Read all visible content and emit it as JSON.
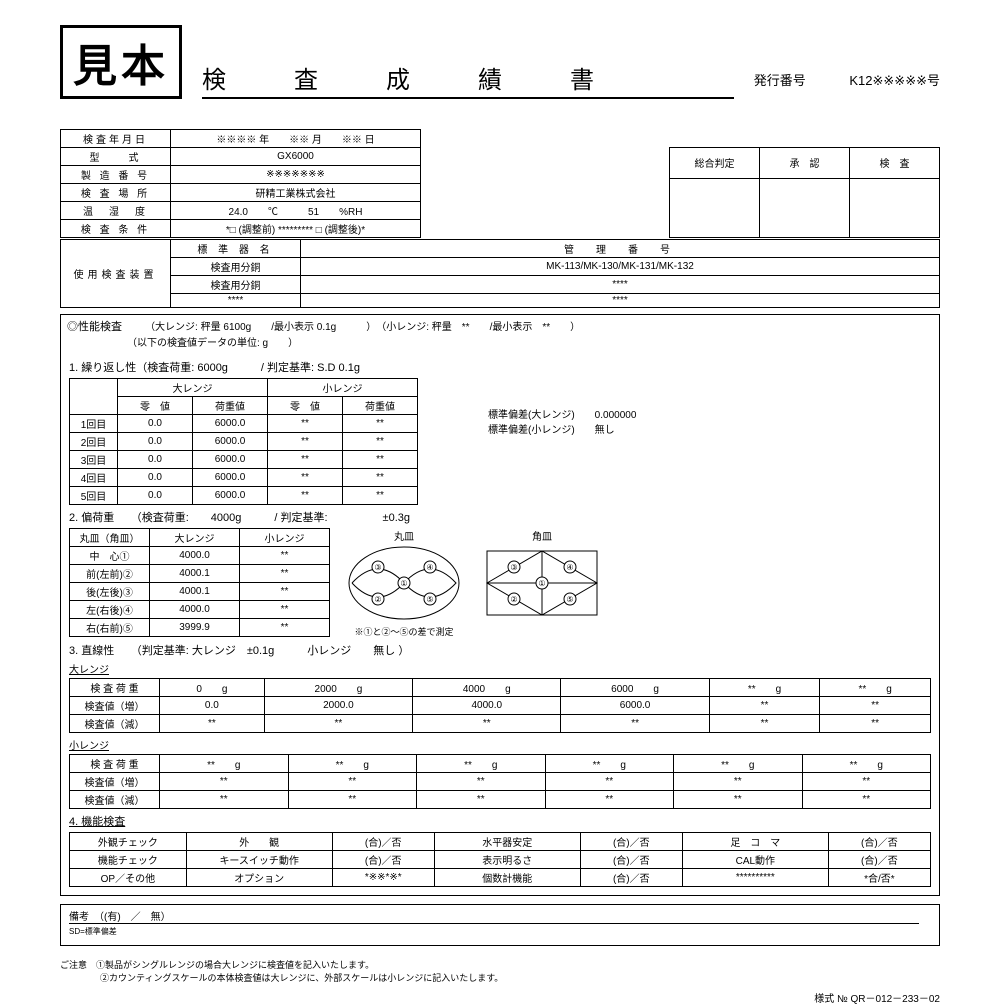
{
  "header": {
    "sample_stamp": "見本",
    "title": "検　査　成　績　書",
    "issue_label": "発行番号",
    "issue_value": "K12※※※※※号"
  },
  "info": {
    "rows": [
      {
        "label": "検査年月日",
        "value": "※※※※ 年　　※※ 月　　※※  日"
      },
      {
        "label": "型　　式",
        "value": "GX6000"
      },
      {
        "label": "製 造 番 号",
        "value": "※※※※※※※"
      },
      {
        "label": "検 査 場 所",
        "value": "研精工業株式会社"
      },
      {
        "label": "温　湿　度",
        "value": "24.0　　℃　　　51　　%RH"
      },
      {
        "label": "検 査 条 件",
        "value": "*□ (調整前) ********* □ (調整後)*"
      }
    ]
  },
  "judge": {
    "cols": [
      "総合判定",
      "承　認",
      "検　査"
    ]
  },
  "device": {
    "side_label": "使用検査装置",
    "header": [
      "標 準 器 名",
      "管　理　番　号"
    ],
    "rows": [
      [
        "検査用分銅",
        "MK-113/MK-130/MK-131/MK-132"
      ],
      [
        "検査用分銅",
        "****"
      ],
      [
        "****",
        "****"
      ]
    ]
  },
  "perf": {
    "title": "◎性能検査",
    "spec": "（大レンジ: 秤量  6100g　　/最小表示  0.1g　　　）　（小レンジ: 秤量　**　　/最小表示　**　　）",
    "unit_note": "（以下の検査値データの単位:  g　　）"
  },
  "repeat": {
    "title": "1. 繰り返し性（検査荷重: 6000g　　　/  判定基準: S.D 0.1g",
    "head_top": [
      "大レンジ",
      "小レンジ"
    ],
    "head_sub": [
      "零　値",
      "荷重値",
      "零　値",
      "荷重値"
    ],
    "rows": [
      [
        "1回目",
        "0.0",
        "6000.0",
        "**",
        "**"
      ],
      [
        "2回目",
        "0.0",
        "6000.0",
        "**",
        "**"
      ],
      [
        "3回目",
        "0.0",
        "6000.0",
        "**",
        "**"
      ],
      [
        "4回目",
        "0.0",
        "6000.0",
        "**",
        "**"
      ],
      [
        "5回目",
        "0.0",
        "6000.0",
        "**",
        "**"
      ]
    ],
    "sd_large_label": "標準偏差(大レンジ)",
    "sd_large_value": "0.000000",
    "sd_small_label": "標準偏差(小レンジ)",
    "sd_small_value": "無し"
  },
  "corner": {
    "title": "2. 偏荷重　　（検査荷重:　　4000g　　　/  判定基準:　　　　　±0.3g",
    "head": [
      "丸皿（角皿）",
      "大レンジ",
      "小レンジ"
    ],
    "rows": [
      [
        "中　心①",
        "4000.0",
        "**"
      ],
      [
        "前(左前)②",
        "4000.1",
        "**"
      ],
      [
        "後(左後)③",
        "4000.1",
        "**"
      ],
      [
        "左(右後)④",
        "4000.0",
        "**"
      ],
      [
        "右(右前)⑤",
        "3999.9",
        "**"
      ]
    ],
    "round_label": "丸皿",
    "square_label": "角皿",
    "note": "※①と②～⑤の差で測定"
  },
  "linear": {
    "title": "3. 直線性　　（判定基準: 大レンジ　±0.1g　　　小レンジ　　無し  ）",
    "large_label": "大レンジ",
    "small_label": "小レンジ",
    "row_labels": [
      "検 査 荷 重",
      "検査値（増）",
      "検査値（減）"
    ],
    "large_cols": [
      "0　　g",
      "2000　　g",
      "4000　　g",
      "6000　　g",
      "**　　g",
      "**　　g"
    ],
    "large_inc": [
      "0.0",
      "2000.0",
      "4000.0",
      "6000.0",
      "**",
      "**"
    ],
    "large_dec": [
      "**",
      "**",
      "**",
      "**",
      "**",
      "**"
    ],
    "small_cols": [
      "**　　g",
      "**　　g",
      "**　　g",
      "**　　g",
      "**　　g",
      "**　　g"
    ],
    "small_inc": [
      "**",
      "**",
      "**",
      "**",
      "**",
      "**"
    ],
    "small_dec": [
      "**",
      "**",
      "**",
      "**",
      "**",
      "**"
    ]
  },
  "func": {
    "title": "4. 機能検査",
    "rows": [
      [
        "外観チェック",
        "外　　観",
        "(合)／否",
        "水平器安定",
        "(合)／否",
        "足　コ　マ",
        "(合)／否"
      ],
      [
        "機能チェック",
        "キースイッチ動作",
        "(合)／否",
        "表示明るさ",
        "(合)／否",
        "CAL動作",
        "(合)／否"
      ],
      [
        "OP／その他",
        "オプション",
        "*※※*※*",
        "個数計機能",
        "(合)／否",
        "**********",
        "*合/否*"
      ]
    ]
  },
  "remarks": {
    "label": "備考　（(有)　／　無）",
    "sd_note": "SD=標準偏差"
  },
  "notes": {
    "prefix": "ご注意",
    "line1": "①製品がシングルレンジの場合大レンジに検査値を記入いたします。",
    "line2": "②カウンティングスケールの本体検査値は大レンジに、外部スケールは小レンジに記入いたします。"
  },
  "form_no": "様式 № QR－012－233－02"
}
